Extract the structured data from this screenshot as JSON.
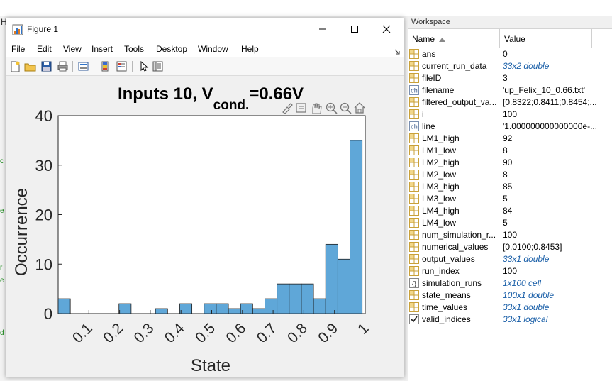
{
  "figure": {
    "title": "Figure 1",
    "menu": [
      "File",
      "Edit",
      "View",
      "Insert",
      "Tools",
      "Desktop",
      "Window",
      "Help"
    ],
    "plot_title": "Inputs 10, V",
    "plot_title_sub": "cond.",
    "plot_title_end": "=0.66V",
    "colors": {
      "bar_fill": "#5fa7d8",
      "bar_edge": "#1b1b1b",
      "axes_bg": "#ffffff"
    }
  },
  "workspace": {
    "title": "Workspace",
    "col_name": "Name",
    "col_value": "Value",
    "rows": [
      {
        "icon": "array-icon",
        "name": "ans",
        "value": "0",
        "italic": false
      },
      {
        "icon": "array-icon",
        "name": "current_run_data",
        "value": "33x2 double",
        "italic": true
      },
      {
        "icon": "array-icon",
        "name": "fileID",
        "value": "3",
        "italic": false
      },
      {
        "icon": "char-icon",
        "name": "filename",
        "value": "'up_Felix_10_0.66.txt'",
        "italic": false
      },
      {
        "icon": "array-icon",
        "name": "filtered_output_va...",
        "value": "[0.8322;0.8411;0.8454;...",
        "italic": false
      },
      {
        "icon": "array-icon",
        "name": "i",
        "value": "100",
        "italic": false
      },
      {
        "icon": "char-icon",
        "name": "line",
        "value": "'1.000000000000000e-...",
        "italic": false
      },
      {
        "icon": "array-icon",
        "name": "LM1_high",
        "value": "92",
        "italic": false
      },
      {
        "icon": "array-icon",
        "name": "LM1_low",
        "value": "8",
        "italic": false
      },
      {
        "icon": "array-icon",
        "name": "LM2_high",
        "value": "90",
        "italic": false
      },
      {
        "icon": "array-icon",
        "name": "LM2_low",
        "value": "8",
        "italic": false
      },
      {
        "icon": "array-icon",
        "name": "LM3_high",
        "value": "85",
        "italic": false
      },
      {
        "icon": "array-icon",
        "name": "LM3_low",
        "value": "5",
        "italic": false
      },
      {
        "icon": "array-icon",
        "name": "LM4_high",
        "value": "84",
        "italic": false
      },
      {
        "icon": "array-icon",
        "name": "LM4_low",
        "value": "5",
        "italic": false
      },
      {
        "icon": "array-icon",
        "name": "num_simulation_r...",
        "value": "100",
        "italic": false
      },
      {
        "icon": "array-icon",
        "name": "numerical_values",
        "value": "[0.0100;0.8453]",
        "italic": false
      },
      {
        "icon": "array-icon",
        "name": "output_values",
        "value": "33x1 double",
        "italic": true
      },
      {
        "icon": "array-icon",
        "name": "run_index",
        "value": "100",
        "italic": false
      },
      {
        "icon": "cell-icon",
        "name": "simulation_runs",
        "value": "1x100 cell",
        "italic": true
      },
      {
        "icon": "array-icon",
        "name": "state_means",
        "value": "100x1 double",
        "italic": true
      },
      {
        "icon": "array-icon",
        "name": "time_values",
        "value": "33x1 double",
        "italic": true
      },
      {
        "icon": "logical-icon",
        "name": "valid_indices",
        "value": "33x1 logical",
        "italic": true
      }
    ]
  },
  "chart_data": {
    "type": "bar",
    "title": "Inputs 10, Vcond.=0.66V",
    "xlabel": "State",
    "ylabel": "Occurrence",
    "xlim": [
      0.0,
      1.0
    ],
    "ylim": [
      0,
      40
    ],
    "bin_width": 0.0396,
    "bin_starts": [
      0.0,
      0.0396,
      0.0792,
      0.1188,
      0.1584,
      0.198,
      0.2376,
      0.2772,
      0.3168,
      0.3564,
      0.396,
      0.4356,
      0.4752,
      0.5148,
      0.5544,
      0.594,
      0.6336,
      0.6732,
      0.7128,
      0.7524,
      0.792,
      0.8316,
      0.8712,
      0.9108,
      0.9504,
      0.99
    ],
    "values": [
      3,
      0,
      0,
      0,
      0,
      2,
      0,
      0,
      1,
      0,
      2,
      0,
      2,
      2,
      1,
      2,
      1,
      3,
      6,
      6,
      6,
      3,
      14,
      11,
      35,
      0
    ],
    "xticks": [
      0.1,
      0.2,
      0.3,
      0.4,
      0.5,
      0.6,
      0.7,
      0.8,
      0.9,
      1.0
    ],
    "xtick_labels": [
      "0.1",
      "0.2",
      "0.3",
      "0.4",
      "0.5",
      "0.6",
      "0.7",
      "0.8",
      "0.9",
      "1"
    ],
    "yticks": [
      0,
      10,
      20,
      30,
      40
    ],
    "ytick_labels": [
      "0",
      "10",
      "20",
      "30",
      "40"
    ],
    "grid": false
  }
}
